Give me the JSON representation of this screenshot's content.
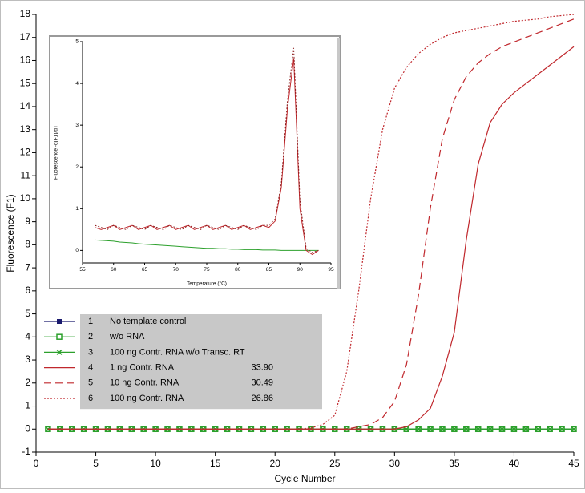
{
  "chart_data": [
    {
      "type": "line",
      "x_label": "Cycle Number",
      "y_label": "Fluorescence (F1)",
      "x": [
        1,
        2,
        3,
        4,
        5,
        6,
        7,
        8,
        9,
        10,
        11,
        12,
        13,
        14,
        15,
        16,
        17,
        18,
        19,
        20,
        21,
        22,
        23,
        24,
        25,
        26,
        27,
        28,
        29,
        30,
        31,
        32,
        33,
        34,
        35,
        36,
        37,
        38,
        39,
        40,
        41,
        42,
        43,
        44,
        45
      ],
      "xlim": [
        0,
        45
      ],
      "xticks": [
        0,
        5,
        10,
        15,
        20,
        25,
        30,
        35,
        40,
        45
      ],
      "ylim": [
        -1,
        18
      ],
      "yticks": [
        -1,
        0,
        1,
        2,
        3,
        4,
        5,
        6,
        7,
        8,
        9,
        10,
        11,
        12,
        13,
        14,
        15,
        16,
        17,
        18
      ],
      "legend": "left",
      "series": [
        {
          "number": "1",
          "name": "No template control",
          "color": "#1a1a6e",
          "line_style": "solid",
          "marker": "square",
          "values": [
            0,
            0,
            0,
            0,
            0,
            0,
            0,
            0,
            0,
            0,
            0,
            0,
            0,
            0,
            0,
            0,
            0,
            0,
            0,
            0,
            0,
            0,
            0,
            0,
            0,
            0,
            0,
            0,
            0,
            0,
            0,
            0,
            0,
            0,
            0,
            0,
            0,
            0,
            0,
            0,
            0,
            0,
            0,
            0,
            0
          ]
        },
        {
          "number": "2",
          "name": "w/o RNA",
          "color": "#2ca02c",
          "line_style": "solid",
          "marker": "square-open",
          "values": [
            0,
            0,
            0,
            0,
            0,
            0,
            0,
            0,
            0,
            0,
            0,
            0,
            0,
            0,
            0,
            0,
            0,
            0,
            0,
            0,
            0,
            0,
            0,
            0,
            0,
            0,
            0,
            0,
            0,
            0,
            0,
            0,
            0,
            0,
            0,
            0,
            0,
            0,
            0,
            0,
            0,
            0,
            0,
            0,
            0
          ]
        },
        {
          "number": "3",
          "name": "100 ng Contr. RNA w/o Transc. RT",
          "color": "#2ca02c",
          "line_style": "solid",
          "marker": "x",
          "values": [
            0,
            0,
            0,
            0,
            0,
            0,
            0,
            0,
            0,
            0,
            0,
            0,
            0,
            0,
            0,
            0,
            0,
            0,
            0,
            0,
            0,
            0,
            0,
            0,
            0,
            0,
            0,
            0,
            0,
            0,
            0,
            0,
            0,
            0,
            0,
            0,
            0,
            0,
            0,
            0,
            0,
            0,
            0,
            0,
            0
          ]
        },
        {
          "number": "4",
          "name": "1 ng Contr. RNA",
          "ct": "33.90",
          "color": "#c0282d",
          "line_style": "solid",
          "marker": "none",
          "values": [
            0,
            0,
            0,
            0,
            0,
            0,
            0,
            0,
            0,
            0,
            0,
            0,
            0,
            0,
            0,
            0,
            0,
            0,
            0,
            0,
            0,
            0,
            0,
            0,
            0,
            0,
            0,
            0,
            0,
            0,
            0.1,
            0.4,
            0.9,
            2.3,
            4.2,
            8.2,
            11.5,
            13.3,
            14.1,
            14.6,
            15.0,
            15.4,
            15.8,
            16.2,
            16.6
          ]
        },
        {
          "number": "5",
          "name": "10 ng Contr. RNA",
          "ct": "30.49",
          "color": "#c0282d",
          "line_style": "dashed",
          "marker": "none",
          "values": [
            0,
            0,
            0,
            0,
            0,
            0,
            0,
            0,
            0,
            0,
            0,
            0,
            0,
            0,
            0,
            0,
            0,
            0,
            0,
            0,
            0,
            0,
            0,
            0,
            0,
            0,
            0.1,
            0.2,
            0.5,
            1.2,
            2.8,
            5.8,
            9.6,
            12.6,
            14.3,
            15.3,
            15.9,
            16.3,
            16.6,
            16.8,
            17.0,
            17.2,
            17.4,
            17.6,
            17.8
          ]
        },
        {
          "number": "6",
          "name": "100 ng Contr. RNA",
          "ct": "26.86",
          "color": "#c0282d",
          "line_style": "dotted",
          "marker": "none",
          "values": [
            0,
            0,
            0,
            0,
            0,
            0,
            0,
            0,
            0,
            0,
            0,
            0,
            0,
            0,
            0,
            0,
            0,
            0,
            0,
            0,
            0,
            0,
            0.05,
            0.2,
            0.6,
            2.5,
            6.0,
            10.0,
            13.0,
            14.8,
            15.7,
            16.3,
            16.7,
            17.0,
            17.2,
            17.3,
            17.4,
            17.5,
            17.6,
            17.7,
            17.75,
            17.8,
            17.9,
            17.95,
            18.0
          ]
        }
      ]
    },
    {
      "type": "line",
      "x_label": "Temperature (°C)",
      "y_label": "Fluorescence -d(F1)/dT",
      "x": [
        57,
        58,
        59,
        60,
        61,
        62,
        63,
        64,
        65,
        66,
        67,
        68,
        69,
        70,
        71,
        72,
        73,
        74,
        75,
        76,
        77,
        78,
        79,
        80,
        81,
        82,
        83,
        84,
        85,
        86,
        87,
        88,
        89,
        90,
        91,
        92,
        93
      ],
      "xlim": [
        55,
        95
      ],
      "xticks": [
        55,
        60,
        65,
        70,
        75,
        80,
        85,
        90,
        95
      ],
      "ylim": [
        -0.3,
        5
      ],
      "yticks": [
        0,
        1,
        2,
        3,
        4,
        5
      ],
      "series": [
        {
          "color": "#2ca02c",
          "line_style": "solid",
          "values": [
            0.25,
            0.24,
            0.23,
            0.22,
            0.2,
            0.19,
            0.18,
            0.16,
            0.15,
            0.14,
            0.13,
            0.12,
            0.11,
            0.1,
            0.09,
            0.08,
            0.07,
            0.06,
            0.05,
            0.05,
            0.04,
            0.04,
            0.03,
            0.03,
            0.02,
            0.02,
            0.02,
            0.01,
            0.01,
            0.01,
            0,
            0,
            0,
            0,
            0,
            0,
            0
          ]
        },
        {
          "color": "#c0282d",
          "line_style": "solid",
          "values": [
            0.55,
            0.5,
            0.55,
            0.6,
            0.5,
            0.55,
            0.6,
            0.5,
            0.55,
            0.6,
            0.5,
            0.55,
            0.6,
            0.5,
            0.55,
            0.6,
            0.5,
            0.55,
            0.6,
            0.5,
            0.55,
            0.6,
            0.5,
            0.55,
            0.6,
            0.5,
            0.55,
            0.6,
            0.55,
            0.7,
            1.5,
            3.4,
            4.6,
            1.0,
            0.0,
            -0.1,
            0.0
          ]
        },
        {
          "color": "#8b1a1a",
          "line_style": "dotted",
          "values": [
            0.6,
            0.55,
            0.5,
            0.6,
            0.55,
            0.5,
            0.6,
            0.55,
            0.5,
            0.6,
            0.55,
            0.5,
            0.6,
            0.55,
            0.5,
            0.6,
            0.55,
            0.5,
            0.6,
            0.55,
            0.5,
            0.6,
            0.55,
            0.5,
            0.6,
            0.55,
            0.5,
            0.6,
            0.6,
            0.75,
            1.6,
            3.6,
            4.85,
            1.2,
            0.05,
            -0.05,
            0.0
          ]
        }
      ]
    }
  ]
}
